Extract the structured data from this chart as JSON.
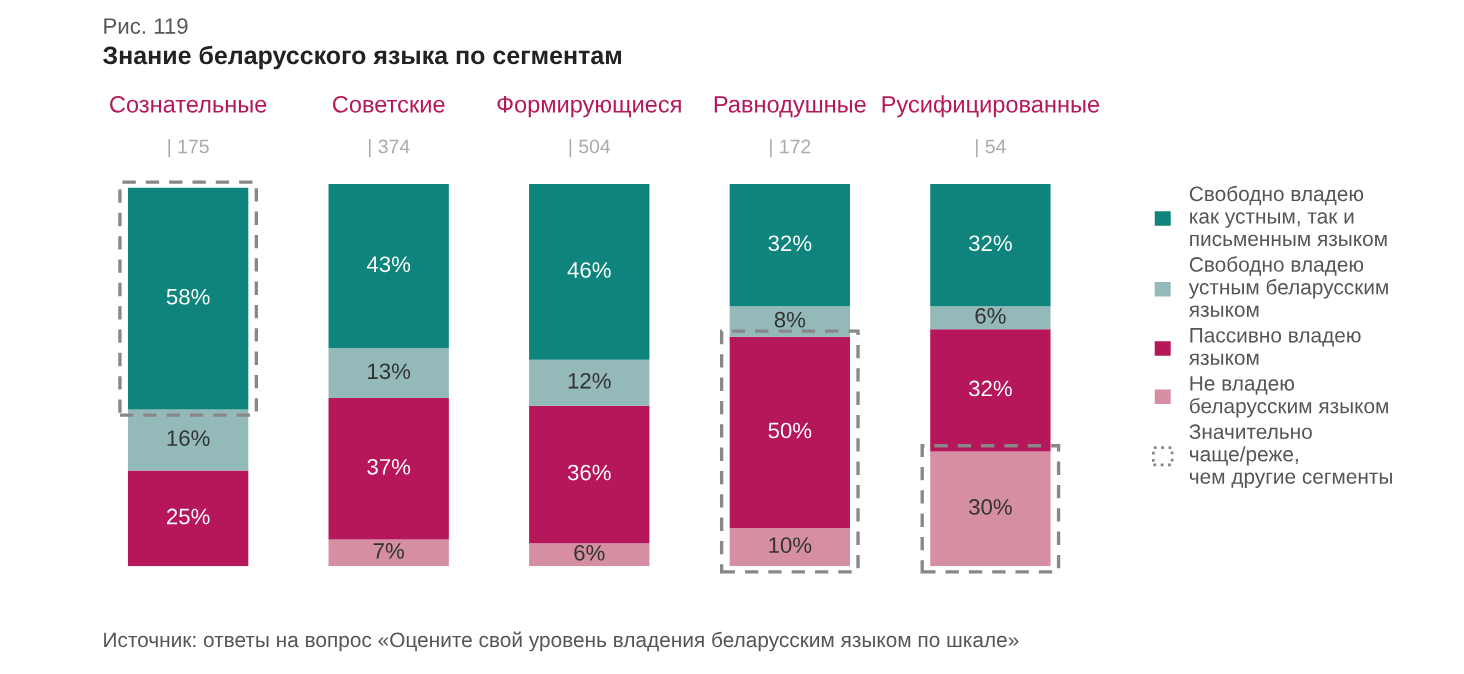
{
  "chart_data": {
    "type": "bar",
    "stacked": true,
    "title": "Знание беларусского языка по сегментам",
    "subtitle": "Рис. 119",
    "categories": [
      "Сознательные",
      "Советские",
      "Формирующиеся",
      "Равнодушные",
      "Русифицированные"
    ],
    "series": [
      {
        "name": "Не владею\nбеларусским языком",
        "color": "#d68ea3",
        "values": [
          null,
          7,
          6,
          10,
          30
        ],
        "value_labels": [
          null,
          "7%",
          "6%",
          "10%",
          "30%"
        ]
      },
      {
        "name": "Пассивно владею\nязыком",
        "color": "#b5175a",
        "values": [
          25,
          37,
          36,
          50,
          32
        ],
        "value_labels": [
          "25%",
          "37%",
          "36%",
          "50%",
          "32%"
        ]
      },
      {
        "name": "Свободно владею\nустным беларусским\nязыком",
        "color": "#94b9b9",
        "values": [
          16,
          13,
          12,
          8,
          6
        ],
        "value_labels": [
          "16%",
          "13%",
          "12%",
          "8%",
          "6%"
        ]
      },
      {
        "name": "Свободно владею\nкак устным, так и\nписьменным языком",
        "color": "#0f847c",
        "values": [
          58,
          43,
          46,
          32,
          32
        ],
        "value_labels": [
          "58%",
          "43%",
          "46%",
          "32%",
          "32%"
        ]
      }
    ],
    "annotations": [
      "Источник: ответы на вопрос «Оцените свой уровень владения беларусским языком по шкале»",
      "| 175",
      "| 374",
      "| 504",
      "| 172",
      "| 54",
      "Значительно\nчаще/реже,\nчем другие сегменты"
    ],
    "legend": "right",
    "tick_labels": "x",
    "grid": false
  }
}
